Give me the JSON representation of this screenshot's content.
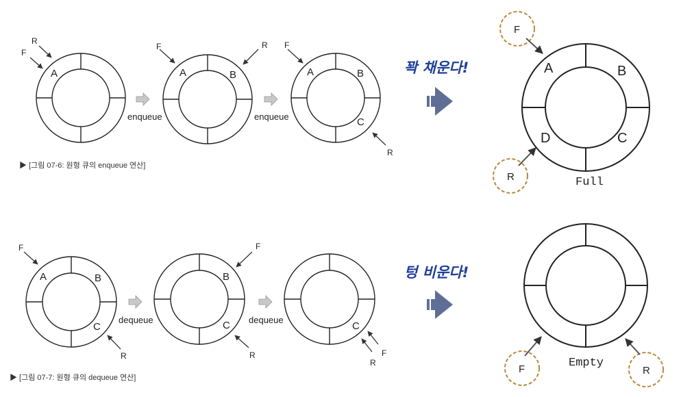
{
  "enqueue": {
    "ops": [
      "enqueue",
      "enqueue"
    ],
    "caption": "▶ [그림 07-6: 원형 큐의 enqueue 연산]",
    "rings": [
      {
        "slots": [
          "A",
          "",
          "",
          ""
        ],
        "front": "F",
        "rear": "R"
      },
      {
        "slots": [
          "A",
          "B",
          "",
          ""
        ],
        "front": "F",
        "rear": "R"
      },
      {
        "slots": [
          "A",
          "B",
          "C",
          ""
        ],
        "front": "F",
        "rear": "R"
      }
    ]
  },
  "dequeue": {
    "ops": [
      "dequeue",
      "dequeue"
    ],
    "caption": "▶ [그림 07-7: 원형 큐의 dequeue 연산]",
    "rings": [
      {
        "slots": [
          "A",
          "B",
          "C",
          ""
        ],
        "front": "F",
        "rear": "R"
      },
      {
        "slots": [
          "",
          "B",
          "C",
          ""
        ],
        "front": "F",
        "rear": "R"
      },
      {
        "slots": [
          "",
          "",
          "C",
          ""
        ],
        "front": "F",
        "rear": "R"
      }
    ]
  },
  "full": {
    "annotation": "꽉 채운다!",
    "state": "Full",
    "slots": [
      "A",
      "B",
      "C",
      "D"
    ],
    "front": "F",
    "rear": "R"
  },
  "empty": {
    "annotation": "텅 비운다!",
    "state": "Empty",
    "front": "F",
    "rear": "R"
  },
  "colors": {
    "line": "#222222",
    "pointer": "#333333",
    "big_arrow": "#5f6e96",
    "small_arrow": "#c8c8c8",
    "dashed_circle": "#b8893b",
    "annotation": "#1e3f9a"
  }
}
